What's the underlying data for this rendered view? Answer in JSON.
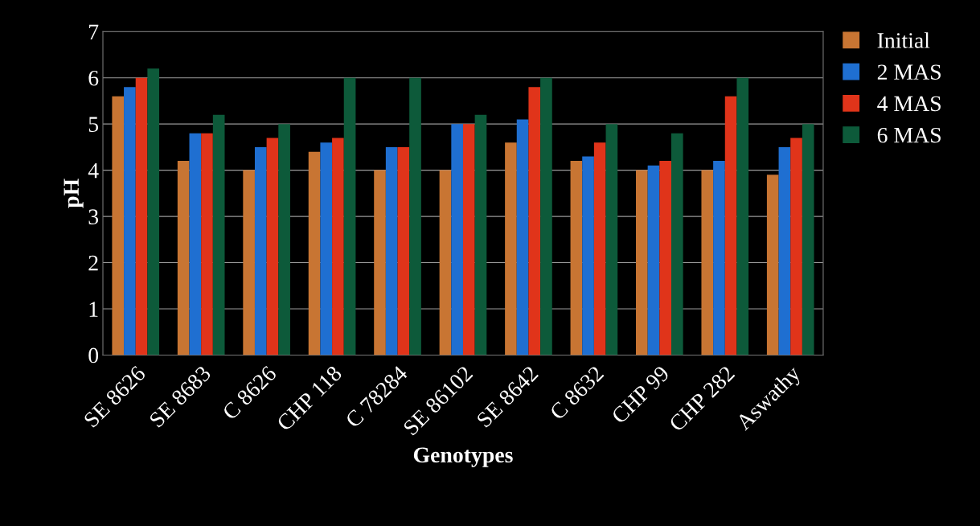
{
  "chart_data": {
    "type": "bar",
    "xlabel": "Genotypes",
    "ylabel": "pH",
    "categories": [
      "SE 8626",
      "SE 8683",
      "C 8626",
      "CHP 118",
      "C 78284",
      "SE 86102",
      "SE 8642",
      "C 8632",
      "CHP 99",
      "CHP 282",
      "Aswathy"
    ],
    "series": [
      {
        "name": "Initial",
        "color": "#c87533",
        "values": [
          5.6,
          4.2,
          4.0,
          4.4,
          4.0,
          4.0,
          4.6,
          4.2,
          4.0,
          4.0,
          3.9
        ]
      },
      {
        "name": "2 MAS",
        "color": "#1f6fd1",
        "values": [
          5.8,
          4.8,
          4.5,
          4.6,
          4.5,
          5.0,
          5.1,
          4.3,
          4.1,
          4.2,
          4.5
        ]
      },
      {
        "name": "4 MAS",
        "color": "#e0341a",
        "values": [
          6.0,
          4.8,
          4.7,
          4.7,
          4.5,
          5.0,
          5.8,
          4.6,
          4.2,
          5.6,
          4.7
        ]
      },
      {
        "name": "6 MAS",
        "color": "#0d5a3a",
        "values": [
          6.2,
          5.2,
          5.0,
          6.0,
          6.0,
          5.2,
          6.0,
          5.0,
          4.8,
          6.0,
          5.0
        ]
      }
    ],
    "ylim": [
      0,
      7
    ],
    "yticks": [
      0,
      1,
      2,
      3,
      4,
      5,
      6,
      7
    ],
    "grid": "y",
    "legend": "right"
  }
}
